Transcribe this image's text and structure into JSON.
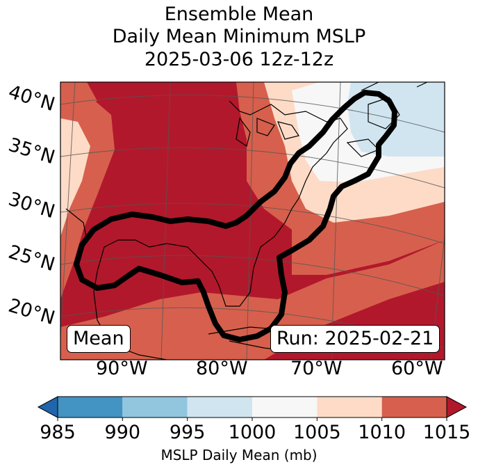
{
  "title": {
    "line1": "Ensemble Mean",
    "line2": "Daily Mean Minimum MSLP",
    "line3": "2025-03-06 12z-12z"
  },
  "map": {
    "lat_labels": [
      "40°N",
      "35°N",
      "30°N",
      "25°N",
      "20°N"
    ],
    "lon_labels": [
      "90°W",
      "80°W",
      "70°W",
      "60°W"
    ],
    "mean_box": "Mean",
    "run_box": "Run: 2025-02-21",
    "field_colors": {
      "lt990": "#4393c3",
      "990_995": "#92c5de",
      "995_1000": "#d1e5f0",
      "1000_1005": "#f7f7f7",
      "1005_1010": "#fddbc7",
      "1010_1015": "#d6604d",
      "gt1015": "#b2182b"
    }
  },
  "colorbar": {
    "ticks": [
      "985",
      "990",
      "995",
      "1000",
      "1005",
      "1010",
      "1015"
    ],
    "colors": [
      "#2166ac",
      "#4393c3",
      "#92c5de",
      "#d1e5f0",
      "#f7f7f7",
      "#fddbc7",
      "#d6604d",
      "#b2182b"
    ],
    "label": "MSLP Daily Mean (mb)"
  }
}
